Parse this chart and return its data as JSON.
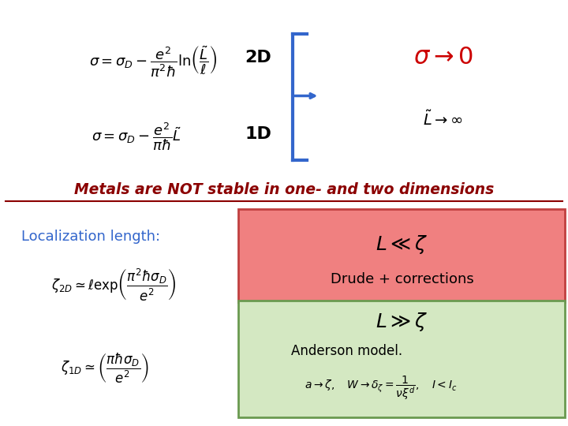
{
  "bg_color": "#ffffff",
  "eq1_2d": "$\\sigma = \\sigma_D - \\dfrac{e^2}{\\pi^2\\hbar}\\ln\\!\\left(\\dfrac{\\tilde{L}}{\\ell}\\right)$",
  "eq1_1d": "$\\sigma = \\sigma_D - \\dfrac{e^2}{\\pi\\hbar}\\tilde{L}$",
  "label_2d": "2D",
  "label_1d": "1D",
  "rhs_line1": "$\\sigma \\rightarrow 0$",
  "rhs_line2": "$\\tilde{L} \\rightarrow \\infty$",
  "main_text": "Metals are NOT stable in one- and two dimensions",
  "loc_label": "Localization length:",
  "eq_zeta2d": "$\\zeta_{2D} \\simeq \\ell\\exp\\!\\left(\\dfrac{\\pi^2\\hbar\\sigma_D}{e^2}\\right)$",
  "eq_zeta1d": "$\\zeta_{1D} \\simeq \\left(\\dfrac{\\pi\\hbar\\sigma_D}{e^2}\\right)$",
  "box1_eq": "$L \\ll \\zeta$",
  "box1_sub": "Drude + corrections",
  "box1_color": "#f08080",
  "box1_edge": "#c04040",
  "box2_eq": "$L \\gg \\zeta$",
  "box2_sub": "Anderson model.",
  "box2_line": "$a \\rightarrow \\zeta, \\quad W \\rightarrow \\delta_\\zeta = \\dfrac{1}{\\nu\\xi^d}, \\quad I < I_c$",
  "box2_color": "#d4e8c2",
  "box2_edge": "#6a9a50",
  "red_color": "#cc0000",
  "blue_color": "#3366cc",
  "dark_red": "#8b0000"
}
